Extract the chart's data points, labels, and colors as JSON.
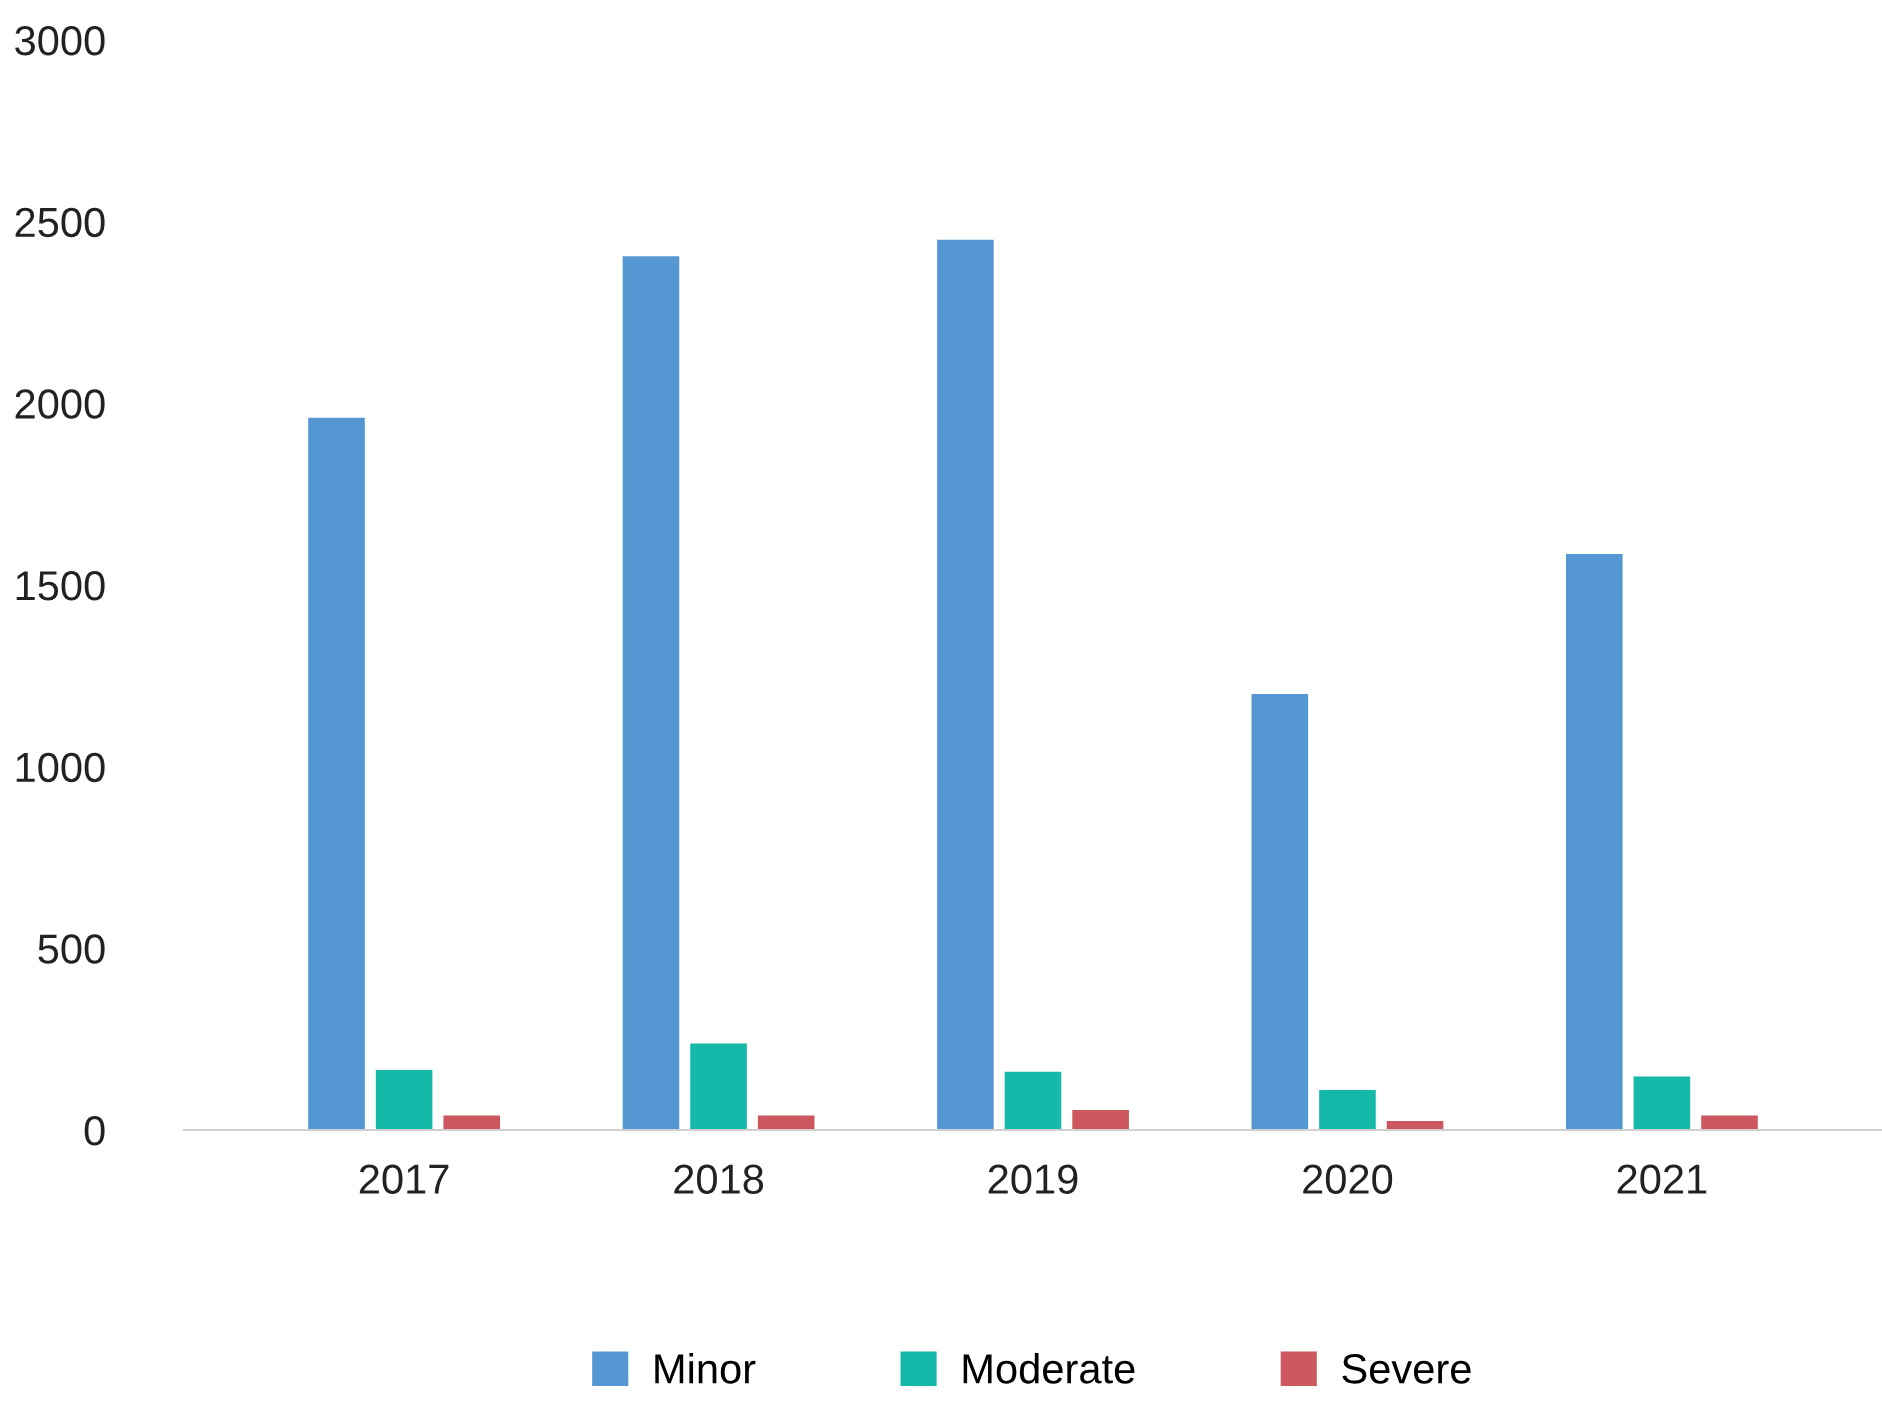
{
  "chart_data": {
    "type": "bar",
    "categories": [
      "2017",
      "2018",
      "2019",
      "2020",
      "2021"
    ],
    "series": [
      {
        "name": "Minor",
        "color": "#5497d2",
        "values": [
          1960,
          2405,
          2450,
          1200,
          1585
        ]
      },
      {
        "name": "Moderate",
        "color": "#15b9aa",
        "values": [
          165,
          238,
          160,
          110,
          147
        ]
      },
      {
        "name": "Severe",
        "color": "#cc575e",
        "values": [
          40,
          40,
          55,
          25,
          40
        ]
      }
    ],
    "ylim": [
      0,
      3000
    ],
    "yticks": [
      0,
      500,
      1000,
      1500,
      2000,
      2500,
      3000
    ],
    "grid": false,
    "legend": "bottom"
  }
}
